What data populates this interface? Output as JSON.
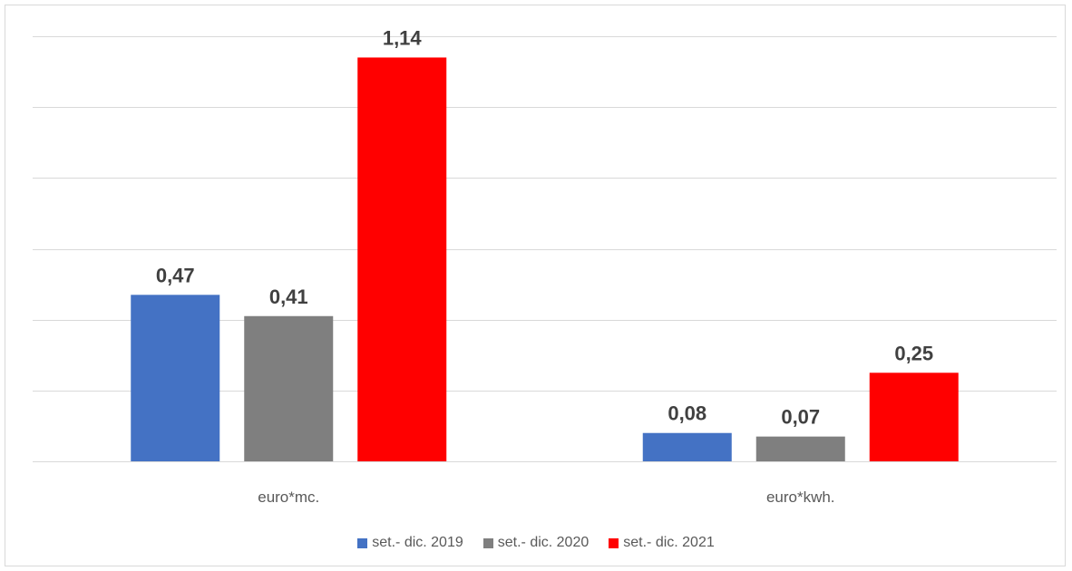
{
  "chart_data": {
    "type": "bar",
    "categories": [
      "euro*mc.",
      "euro*kwh."
    ],
    "series": [
      {
        "name": "set.- dic. 2019",
        "values": [
          0.47,
          0.08
        ],
        "labels": [
          "0,47",
          "0,08"
        ],
        "color": "#4472C4"
      },
      {
        "name": "set.- dic. 2020",
        "values": [
          0.41,
          0.07
        ],
        "labels": [
          "0,41",
          "0,07"
        ],
        "color": "#7F7F7F"
      },
      {
        "name": "set.- dic. 2021",
        "values": [
          1.14,
          0.25
        ],
        "labels": [
          "1,14",
          "0,25"
        ],
        "color": "#FF0000"
      }
    ],
    "ylim": [
      0,
      1.2
    ],
    "gridlines": true,
    "y_tick_labels_visible": false,
    "legend_position": "bottom",
    "title": "",
    "xlabel": "",
    "ylabel": ""
  }
}
